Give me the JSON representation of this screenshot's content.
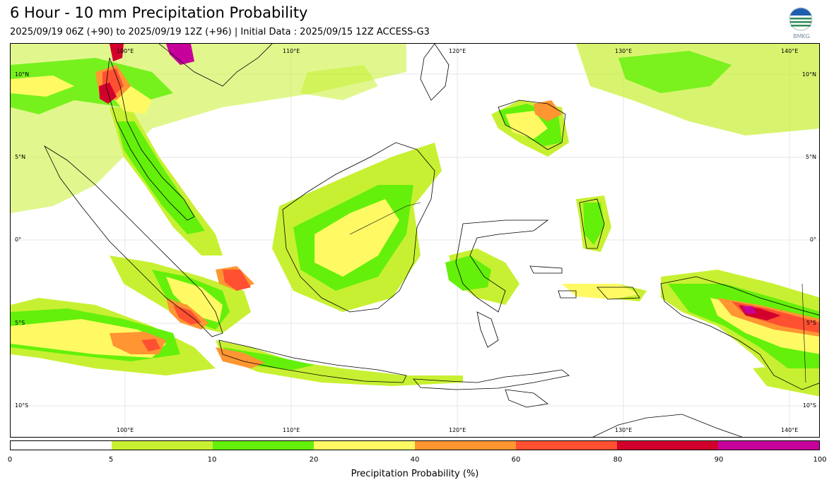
{
  "header": {
    "title": "6 Hour - 10 mm Precipitation Probability",
    "subtitle": "2025/09/19 06Z (+90) to 2025/09/19 12Z (+96) | Initial Data : 2025/09/15 12Z ACCESS-G3",
    "logo_text": "BMKG"
  },
  "map": {
    "region": "Indonesia",
    "lon_labels": [
      "100°E",
      "110°E",
      "120°E",
      "130°E",
      "140°E"
    ],
    "lat_labels": [
      "10°N",
      "5°N",
      "0°",
      "5°S",
      "10°S"
    ],
    "land_border_color": "#000000"
  },
  "colorbar": {
    "label": "Precipitation Probability (%)",
    "ticks": [
      "0",
      "5",
      "10",
      "20",
      "40",
      "60",
      "80",
      "90",
      "100"
    ],
    "colors": [
      "#ffffff",
      "#c8f032",
      "#64f00a",
      "#fffa64",
      "#ff9632",
      "#ff5032",
      "#d2002d",
      "#c8009b"
    ]
  }
}
